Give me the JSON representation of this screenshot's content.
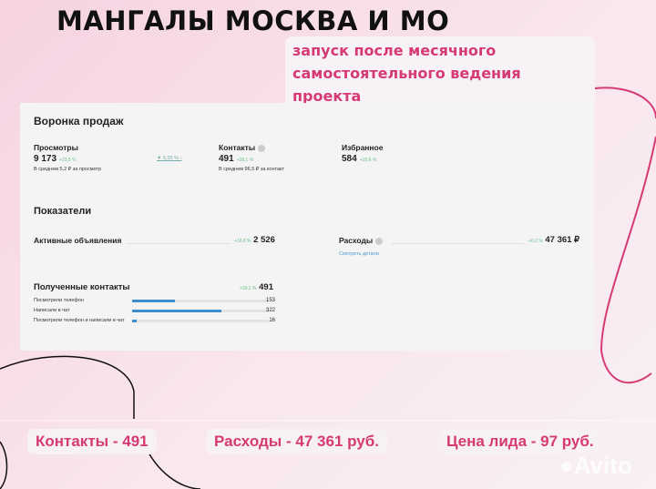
{
  "title": "МАНГАЛЫ МОСКВА И МО",
  "subtitle": "запуск после месячного самостоятельного ведения проекта",
  "accent_color": "#d63a72",
  "funnel": {
    "title": "Воронка продаж",
    "views": {
      "label": "Просмотры",
      "value": "9 173",
      "change": "+23,5 %",
      "note": "В среднем 5,2 ₽ за просмотр"
    },
    "conversion": "▼ 5,35 % ›",
    "contacts": {
      "label": "Контакты",
      "value": "491",
      "change": "+39,1 %",
      "note": "В среднем 96,5 ₽ за контакт"
    },
    "favorites": {
      "label": "Избранное",
      "value": "584",
      "change": "+15,6 %"
    }
  },
  "indicators": {
    "title": "Показатели",
    "active": {
      "label": "Активные объявления",
      "change": "+18,8 %",
      "value": "2 526"
    },
    "expenses": {
      "label": "Расходы",
      "change": "+0,2 %",
      "value": "47 361 ₽",
      "link": "Смотреть детали"
    }
  },
  "received": {
    "title": "Полученные контакты",
    "change": "+39,1 %",
    "value": "491",
    "rows": [
      {
        "label": "Посмотрели телефон",
        "value": 153
      },
      {
        "label": "Написали в чат",
        "value": 322
      },
      {
        "label": "Посмотрели телефон и написали в чат",
        "value": 16
      }
    ]
  },
  "summary": [
    "Контакты - 491",
    "Расходы - 47 361 руб.",
    "Цена лида - 97 руб."
  ],
  "watermark": "Avito"
}
